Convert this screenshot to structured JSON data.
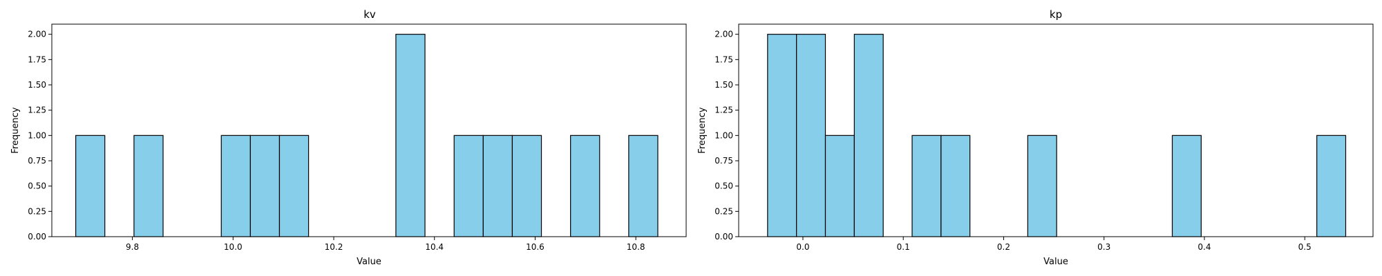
{
  "colors": {
    "bar_fill": "#87ceeb",
    "bar_edge": "#000000",
    "axes": "#000000",
    "background": "#ffffff"
  },
  "chart_data": [
    {
      "type": "bar",
      "subtype": "histogram",
      "title": "kv",
      "xlabel": "Value",
      "ylabel": "Frequency",
      "xlim": [
        9.64,
        10.9
      ],
      "ylim": [
        0,
        2.1
      ],
      "grid": false,
      "legend": "none",
      "bin_width": 0.0578,
      "bins": [
        {
          "start": 9.6875,
          "count": 1
        },
        {
          "start": 9.8032,
          "count": 1
        },
        {
          "start": 9.9766,
          "count": 1
        },
        {
          "start": 10.0344,
          "count": 1
        },
        {
          "start": 10.0922,
          "count": 1
        },
        {
          "start": 10.3234,
          "count": 2
        },
        {
          "start": 10.4391,
          "count": 1
        },
        {
          "start": 10.4969,
          "count": 1
        },
        {
          "start": 10.5547,
          "count": 1
        },
        {
          "start": 10.6703,
          "count": 1
        },
        {
          "start": 10.7859,
          "count": 1
        }
      ],
      "xticks": [
        9.8,
        10.0,
        10.2,
        10.4,
        10.6,
        10.8
      ],
      "xtick_labels": [
        "9.8",
        "10.0",
        "10.2",
        "10.4",
        "10.6",
        "10.8"
      ],
      "yticks": [
        0,
        0.25,
        0.5,
        0.75,
        1.0,
        1.25,
        1.5,
        1.75,
        2.0
      ],
      "ytick_labels": [
        "0.00",
        "0.25",
        "0.50",
        "0.75",
        "1.00",
        "1.25",
        "1.50",
        "1.75",
        "2.00"
      ]
    },
    {
      "type": "bar",
      "subtype": "histogram",
      "title": "kp",
      "xlabel": "Value",
      "ylabel": "Frequency",
      "xlim": [
        -0.064,
        0.568
      ],
      "ylim": [
        0,
        2.1
      ],
      "grid": false,
      "legend": "none",
      "bin_width": 0.0288,
      "bins": [
        {
          "start": -0.0352,
          "count": 2
        },
        {
          "start": -0.0064,
          "count": 2
        },
        {
          "start": 0.0224,
          "count": 1
        },
        {
          "start": 0.0512,
          "count": 2
        },
        {
          "start": 0.1088,
          "count": 1
        },
        {
          "start": 0.1376,
          "count": 1
        },
        {
          "start": 0.224,
          "count": 1
        },
        {
          "start": 0.368,
          "count": 1
        },
        {
          "start": 0.512,
          "count": 1
        }
      ],
      "xticks": [
        0.0,
        0.1,
        0.2,
        0.3,
        0.4,
        0.5
      ],
      "xtick_labels": [
        "0.0",
        "0.1",
        "0.2",
        "0.3",
        "0.4",
        "0.5"
      ],
      "yticks": [
        0,
        0.25,
        0.5,
        0.75,
        1.0,
        1.25,
        1.5,
        1.75,
        2.0
      ],
      "ytick_labels": [
        "0.00",
        "0.25",
        "0.50",
        "0.75",
        "1.00",
        "1.25",
        "1.50",
        "1.75",
        "2.00"
      ]
    }
  ]
}
